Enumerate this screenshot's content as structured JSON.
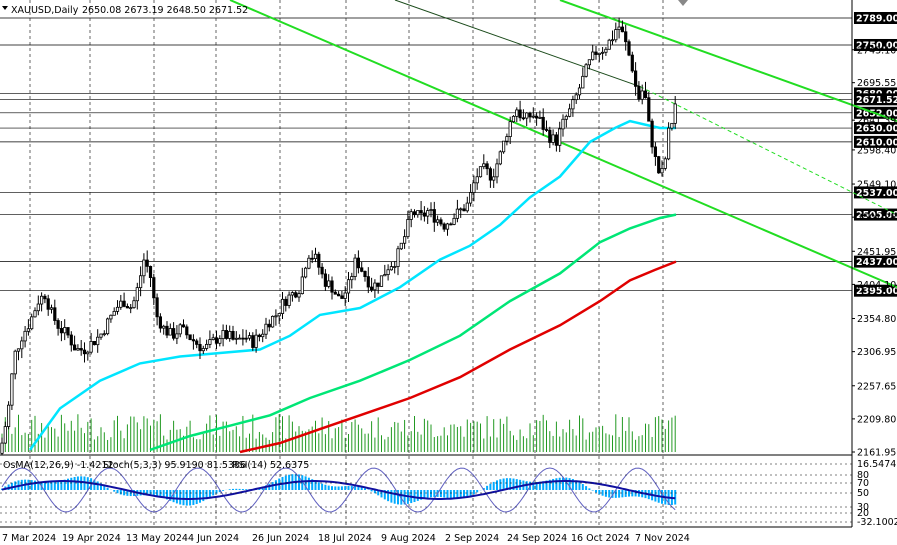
{
  "header": {
    "symbol": "XAUUSD,Daily",
    "ohlc": "2650.08 2673.19 2648.50 2671.52"
  },
  "colors": {
    "bull_candle": "#ffffff",
    "bear_candle": "#000000",
    "ma_fast": "#00e5ff",
    "ma_mid": "#00e676",
    "ma_slow": "#e00000",
    "channel": "#22dd22",
    "volume": "#229922",
    "macd_hist": "#00aaff",
    "signal": "#1010a0"
  },
  "chart_data": [
    {
      "type": "candlestick",
      "title": "XAUUSD,Daily",
      "ylim": [
        2161.95,
        2815
      ],
      "price_levels": [
        2789.0,
        2750.0,
        2680.0,
        2671.52,
        2652.0,
        2630.0,
        2610.0,
        2537.0,
        2505.0,
        2437.0,
        2395.0
      ],
      "axis_ticks": [
        2743.1,
        2695.55,
        2641.39,
        2598.4,
        2549.1,
        2501.25,
        2451.95,
        2404.1,
        2354.8,
        2306.95,
        2257.65,
        2209.8,
        2161.95
      ],
      "date_labels": [
        "7 Mar 2024",
        "19 Apr 2024",
        "13 May 2024",
        "4 Jun 2024",
        "26 Jun 2024",
        "18 Jul 2024",
        "9 Aug 2024",
        "2 Sep 2024",
        "24 Sep 2024",
        "16 Oct 2024",
        "7 Nov 2024"
      ],
      "close_path": [
        [
          0,
          2160
        ],
        [
          8,
          2220
        ],
        [
          14,
          2300
        ],
        [
          22,
          2330
        ],
        [
          30,
          2350
        ],
        [
          38,
          2380
        ],
        [
          45,
          2390
        ],
        [
          52,
          2360
        ],
        [
          60,
          2340
        ],
        [
          68,
          2330
        ],
        [
          76,
          2310
        ],
        [
          84,
          2310
        ],
        [
          92,
          2320
        ],
        [
          100,
          2330
        ],
        [
          108,
          2350
        ],
        [
          116,
          2370
        ],
        [
          124,
          2380
        ],
        [
          132,
          2370
        ],
        [
          138,
          2400
        ],
        [
          144,
          2440
        ],
        [
          150,
          2420
        ],
        [
          156,
          2360
        ],
        [
          164,
          2340
        ],
        [
          172,
          2330
        ],
        [
          180,
          2340
        ],
        [
          188,
          2330
        ],
        [
          196,
          2320
        ],
        [
          204,
          2310
        ],
        [
          212,
          2320
        ],
        [
          220,
          2330
        ],
        [
          228,
          2330
        ],
        [
          236,
          2320
        ],
        [
          244,
          2330
        ],
        [
          252,
          2320
        ],
        [
          260,
          2330
        ],
        [
          268,
          2350
        ],
        [
          276,
          2360
        ],
        [
          284,
          2380
        ],
        [
          292,
          2390
        ],
        [
          300,
          2400
        ],
        [
          308,
          2450
        ],
        [
          316,
          2440
        ],
        [
          324,
          2410
        ],
        [
          332,
          2400
        ],
        [
          340,
          2380
        ],
        [
          348,
          2400
        ],
        [
          356,
          2440
        ],
        [
          364,
          2420
        ],
        [
          372,
          2400
        ],
        [
          380,
          2410
        ],
        [
          388,
          2430
        ],
        [
          396,
          2440
        ],
        [
          404,
          2470
        ],
        [
          412,
          2510
        ],
        [
          420,
          2500
        ],
        [
          428,
          2510
        ],
        [
          436,
          2500
        ],
        [
          444,
          2490
        ],
        [
          452,
          2500
        ],
        [
          460,
          2510
        ],
        [
          468,
          2520
        ],
        [
          476,
          2560
        ],
        [
          484,
          2570
        ],
        [
          492,
          2560
        ],
        [
          500,
          2590
        ],
        [
          508,
          2630
        ],
        [
          516,
          2660
        ],
        [
          524,
          2640
        ],
        [
          532,
          2650
        ],
        [
          540,
          2640
        ],
        [
          548,
          2620
        ],
        [
          556,
          2610
        ],
        [
          564,
          2640
        ],
        [
          572,
          2660
        ],
        [
          580,
          2690
        ],
        [
          588,
          2720
        ],
        [
          596,
          2740
        ],
        [
          604,
          2745
        ],
        [
          612,
          2760
        ],
        [
          618,
          2780
        ],
        [
          624,
          2760
        ],
        [
          632,
          2720
        ],
        [
          638,
          2670
        ],
        [
          644,
          2690
        ],
        [
          648,
          2640
        ],
        [
          652,
          2610
        ],
        [
          656,
          2580
        ],
        [
          660,
          2560
        ],
        [
          664,
          2570
        ],
        [
          668,
          2620
        ],
        [
          672,
          2640
        ],
        [
          676,
          2671.52
        ]
      ],
      "ma_fast": [
        [
          30,
          2165
        ],
        [
          60,
          2225
        ],
        [
          100,
          2265
        ],
        [
          140,
          2290
        ],
        [
          180,
          2300
        ],
        [
          220,
          2305
        ],
        [
          260,
          2310
        ],
        [
          290,
          2330
        ],
        [
          320,
          2360
        ],
        [
          360,
          2370
        ],
        [
          400,
          2400
        ],
        [
          440,
          2440
        ],
        [
          470,
          2460
        ],
        [
          500,
          2490
        ],
        [
          530,
          2530
        ],
        [
          560,
          2560
        ],
        [
          590,
          2610
        ],
        [
          615,
          2630
        ],
        [
          630,
          2640
        ],
        [
          645,
          2635
        ],
        [
          660,
          2630
        ],
        [
          676,
          2630
        ]
      ],
      "ma_mid": [
        [
          150,
          2165
        ],
        [
          190,
          2185
        ],
        [
          230,
          2200
        ],
        [
          270,
          2215
        ],
        [
          310,
          2240
        ],
        [
          360,
          2265
        ],
        [
          410,
          2295
        ],
        [
          460,
          2330
        ],
        [
          510,
          2380
        ],
        [
          560,
          2420
        ],
        [
          600,
          2465
        ],
        [
          630,
          2485
        ],
        [
          660,
          2500
        ],
        [
          676,
          2505
        ]
      ],
      "ma_slow": [
        [
          240,
          2162
        ],
        [
          280,
          2175
        ],
        [
          320,
          2195
        ],
        [
          360,
          2215
        ],
        [
          410,
          2240
        ],
        [
          460,
          2270
        ],
        [
          510,
          2310
        ],
        [
          560,
          2345
        ],
        [
          600,
          2380
        ],
        [
          630,
          2410
        ],
        [
          655,
          2425
        ],
        [
          676,
          2437
        ]
      ],
      "channels": [
        [
          [
            230,
            2815
          ],
          [
            897,
            2400
          ]
        ],
        [
          [
            560,
            2815
          ],
          [
            897,
            2640
          ]
        ],
        [
          [
            395,
            2815
          ],
          [
            640,
            2690
          ]
        ]
      ],
      "dashed_trend": [
        [
          640,
          2690
        ],
        [
          897,
          2505
        ]
      ]
    },
    {
      "type": "oscillator_panel",
      "macd_label": "OsMA(12,26,9) -1.4212",
      "stoch_label": "Stoch(5,3,3) 95.9190 81.5386",
      "rsi_label": "RSI(14) 52.6375",
      "scale_labels": [
        "16.5474",
        "80",
        "70",
        "50",
        "30",
        "20",
        "-32.1002"
      ],
      "ylim": [
        -32.1002,
        16.5474
      ]
    }
  ]
}
